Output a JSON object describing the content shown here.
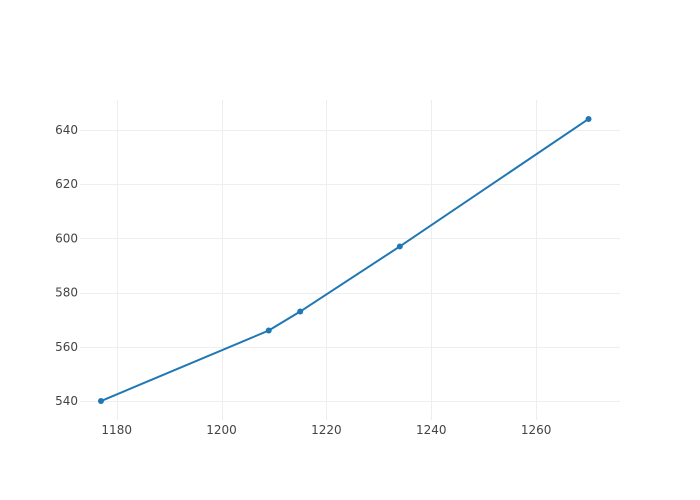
{
  "chart_data": {
    "type": "line",
    "title": "",
    "xlabel": "",
    "ylabel": "",
    "xlim": [
      1173,
      1276
    ],
    "ylim": [
      533,
      651
    ],
    "x_ticks": [
      1180,
      1200,
      1220,
      1240,
      1260
    ],
    "y_ticks": [
      540,
      560,
      580,
      600,
      620,
      640
    ],
    "x_tick_labels": [
      "1180",
      "1200",
      "1220",
      "1240",
      "1260"
    ],
    "y_tick_labels": [
      "540",
      "560",
      "580",
      "600",
      "620",
      "640"
    ],
    "grid": true,
    "legend": "none",
    "series": [
      {
        "color": "#1f77b4",
        "mode": "lines+markers",
        "x": [
          1177,
          1209,
          1215,
          1234,
          1270
        ],
        "y": [
          540,
          566,
          573,
          597,
          644
        ]
      }
    ]
  }
}
